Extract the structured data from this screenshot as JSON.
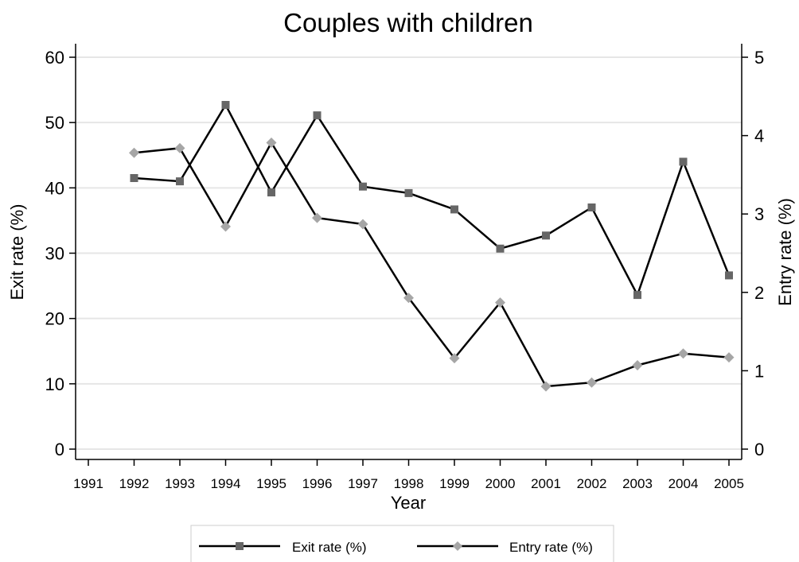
{
  "chart_data": {
    "type": "line",
    "title": "Couples with children",
    "xlabel": "Year",
    "ylabel_left": "Exit rate (%)",
    "ylabel_right": "Entry rate (%)",
    "x": [
      1991,
      1992,
      1993,
      1994,
      1995,
      1996,
      1997,
      1998,
      1999,
      2000,
      2001,
      2002,
      2003,
      2004,
      2005
    ],
    "xlim": [
      1991,
      2005
    ],
    "ylim_left": [
      0,
      60
    ],
    "yticks_left": [
      0,
      10,
      20,
      30,
      40,
      50,
      60
    ],
    "ylim_right": [
      0,
      5
    ],
    "yticks_right": [
      0,
      1,
      2,
      3,
      4,
      5
    ],
    "grid": true,
    "legend_position": "bottom",
    "series": [
      {
        "name": "Exit rate (%)",
        "axis": "left",
        "marker": "square",
        "marker_color": "#666666",
        "line_color": "#000000",
        "x": [
          1992,
          1993,
          1994,
          1995,
          1996,
          1997,
          1998,
          1999,
          2000,
          2001,
          2002,
          2003,
          2004,
          2005
        ],
        "values": [
          41.5,
          41.0,
          52.7,
          39.3,
          51.1,
          40.2,
          39.2,
          36.7,
          30.7,
          32.7,
          37.0,
          23.6,
          44.0,
          26.6
        ]
      },
      {
        "name": "Entry rate (%)",
        "axis": "right",
        "marker": "diamond",
        "marker_color": "#a6a6a6",
        "line_color": "#000000",
        "x": [
          1992,
          1993,
          1994,
          1995,
          1996,
          1997,
          1998,
          1999,
          2000,
          2001,
          2002,
          2003,
          2004,
          2005
        ],
        "values": [
          3.78,
          3.84,
          2.84,
          3.91,
          2.95,
          2.87,
          1.93,
          1.16,
          1.87,
          0.8,
          0.85,
          1.07,
          1.22,
          1.17
        ]
      }
    ]
  }
}
